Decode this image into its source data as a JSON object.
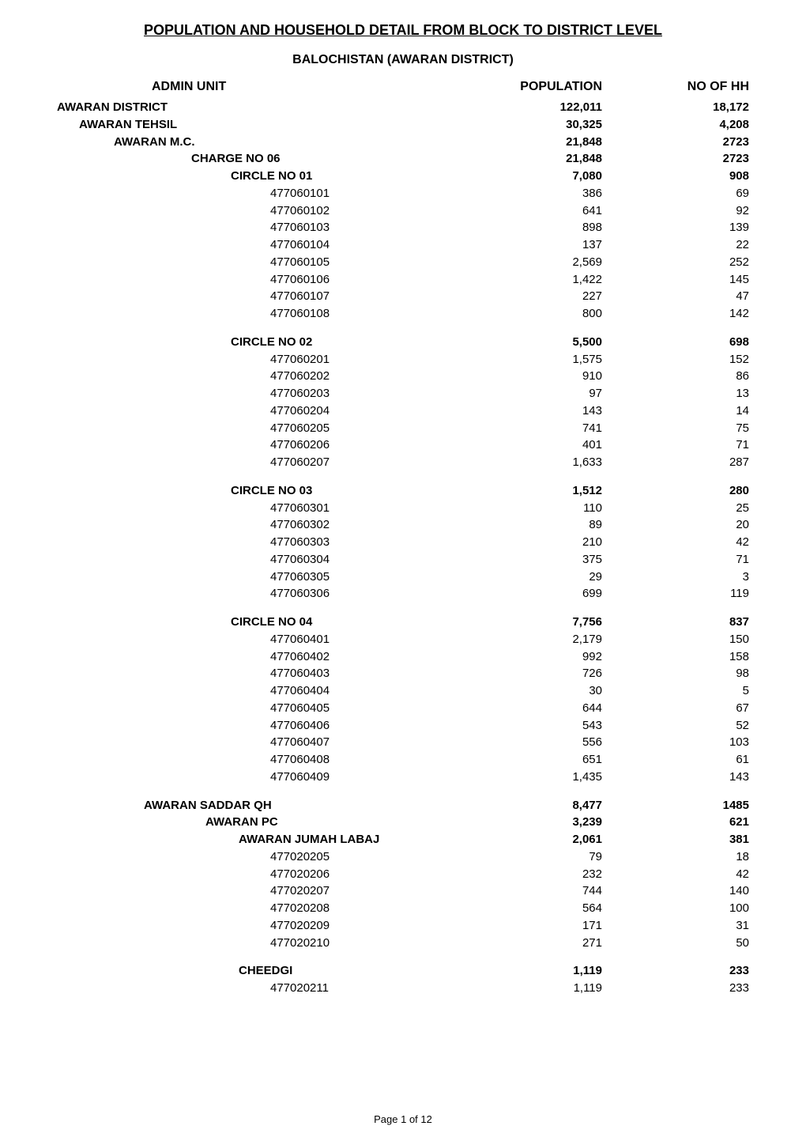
{
  "title": "POPULATION AND HOUSEHOLD DETAIL FROM BLOCK TO DISTRICT LEVEL",
  "subtitle": "BALOCHISTAN (AWARAN DISTRICT)",
  "columns": {
    "admin": "ADMIN UNIT",
    "pop": "POPULATION",
    "hh": "NO OF HH"
  },
  "footer": "Page 1 of 12",
  "rows": [
    {
      "level": "lvl-0",
      "bold": true,
      "label": "AWARAN DISTRICT",
      "pop": "122,011",
      "hh": "18,172"
    },
    {
      "level": "lvl-1",
      "bold": true,
      "label": "AWARAN TEHSIL",
      "pop": "30,325",
      "hh": "4,208"
    },
    {
      "level": "lvl-2",
      "bold": true,
      "label": "AWARAN M.C.",
      "pop": "21,848",
      "hh": "2723"
    },
    {
      "level": "lvl-3",
      "bold": true,
      "label": "CHARGE NO 06",
      "pop": "21,848",
      "hh": "2723"
    },
    {
      "level": "lvl-4",
      "bold": true,
      "label": "CIRCLE NO 01",
      "pop": "7,080",
      "hh": "908"
    },
    {
      "level": "lvl-5",
      "bold": false,
      "label": "477060101",
      "pop": "386",
      "hh": "69"
    },
    {
      "level": "lvl-5",
      "bold": false,
      "label": "477060102",
      "pop": "641",
      "hh": "92"
    },
    {
      "level": "lvl-5",
      "bold": false,
      "label": "477060103",
      "pop": "898",
      "hh": "139"
    },
    {
      "level": "lvl-5",
      "bold": false,
      "label": "477060104",
      "pop": "137",
      "hh": "22"
    },
    {
      "level": "lvl-5",
      "bold": false,
      "label": "477060105",
      "pop": "2,569",
      "hh": "252"
    },
    {
      "level": "lvl-5",
      "bold": false,
      "label": "477060106",
      "pop": "1,422",
      "hh": "145"
    },
    {
      "level": "lvl-5",
      "bold": false,
      "label": "477060107",
      "pop": "227",
      "hh": "47"
    },
    {
      "level": "lvl-5",
      "bold": false,
      "label": "477060108",
      "pop": "800",
      "hh": "142"
    },
    {
      "spacer": true
    },
    {
      "level": "lvl-4",
      "bold": true,
      "label": "CIRCLE NO 02",
      "pop": "5,500",
      "hh": "698"
    },
    {
      "level": "lvl-5",
      "bold": false,
      "label": "477060201",
      "pop": "1,575",
      "hh": "152"
    },
    {
      "level": "lvl-5",
      "bold": false,
      "label": "477060202",
      "pop": "910",
      "hh": "86"
    },
    {
      "level": "lvl-5",
      "bold": false,
      "label": "477060203",
      "pop": "97",
      "hh": "13"
    },
    {
      "level": "lvl-5",
      "bold": false,
      "label": "477060204",
      "pop": "143",
      "hh": "14"
    },
    {
      "level": "lvl-5",
      "bold": false,
      "label": "477060205",
      "pop": "741",
      "hh": "75"
    },
    {
      "level": "lvl-5",
      "bold": false,
      "label": "477060206",
      "pop": "401",
      "hh": "71"
    },
    {
      "level": "lvl-5",
      "bold": false,
      "label": "477060207",
      "pop": "1,633",
      "hh": "287"
    },
    {
      "spacer": true
    },
    {
      "level": "lvl-4",
      "bold": true,
      "label": "CIRCLE NO 03",
      "pop": "1,512",
      "hh": "280"
    },
    {
      "level": "lvl-5",
      "bold": false,
      "label": "477060301",
      "pop": "110",
      "hh": "25"
    },
    {
      "level": "lvl-5",
      "bold": false,
      "label": "477060302",
      "pop": "89",
      "hh": "20"
    },
    {
      "level": "lvl-5",
      "bold": false,
      "label": "477060303",
      "pop": "210",
      "hh": "42"
    },
    {
      "level": "lvl-5",
      "bold": false,
      "label": "477060304",
      "pop": "375",
      "hh": "71"
    },
    {
      "level": "lvl-5",
      "bold": false,
      "label": "477060305",
      "pop": "29",
      "hh": "3"
    },
    {
      "level": "lvl-5",
      "bold": false,
      "label": "477060306",
      "pop": "699",
      "hh": "119"
    },
    {
      "spacer": true
    },
    {
      "level": "lvl-4",
      "bold": true,
      "label": "CIRCLE NO 04",
      "pop": "7,756",
      "hh": "837"
    },
    {
      "level": "lvl-5",
      "bold": false,
      "label": "477060401",
      "pop": "2,179",
      "hh": "150"
    },
    {
      "level": "lvl-5",
      "bold": false,
      "label": "477060402",
      "pop": "992",
      "hh": "158"
    },
    {
      "level": "lvl-5",
      "bold": false,
      "label": "477060403",
      "pop": "726",
      "hh": "98"
    },
    {
      "level": "lvl-5",
      "bold": false,
      "label": "477060404",
      "pop": "30",
      "hh": "5"
    },
    {
      "level": "lvl-5",
      "bold": false,
      "label": "477060405",
      "pop": "644",
      "hh": "67"
    },
    {
      "level": "lvl-5",
      "bold": false,
      "label": "477060406",
      "pop": "543",
      "hh": "52"
    },
    {
      "level": "lvl-5",
      "bold": false,
      "label": "477060407",
      "pop": "556",
      "hh": "103"
    },
    {
      "level": "lvl-5",
      "bold": false,
      "label": "477060408",
      "pop": "651",
      "hh": "61"
    },
    {
      "level": "lvl-5",
      "bold": false,
      "label": "477060409",
      "pop": "1,435",
      "hh": "143"
    },
    {
      "spacer": true
    },
    {
      "level": "lvl-qh",
      "bold": true,
      "label": "AWARAN SADDAR QH",
      "pop": "8,477",
      "hh": "1485"
    },
    {
      "level": "lvl-pc",
      "bold": true,
      "label": "AWARAN PC",
      "pop": "3,239",
      "hh": "621"
    },
    {
      "level": "lvl-sub",
      "bold": true,
      "label": "AWARAN JUMAH LABAJ",
      "pop": "2,061",
      "hh": "381"
    },
    {
      "level": "lvl-code",
      "bold": false,
      "label": "477020205",
      "pop": "79",
      "hh": "18"
    },
    {
      "level": "lvl-code",
      "bold": false,
      "label": "477020206",
      "pop": "232",
      "hh": "42"
    },
    {
      "level": "lvl-code",
      "bold": false,
      "label": "477020207",
      "pop": "744",
      "hh": "140"
    },
    {
      "level": "lvl-code",
      "bold": false,
      "label": "477020208",
      "pop": "564",
      "hh": "100"
    },
    {
      "level": "lvl-code",
      "bold": false,
      "label": "477020209",
      "pop": "171",
      "hh": "31"
    },
    {
      "level": "lvl-code",
      "bold": false,
      "label": "477020210",
      "pop": "271",
      "hh": "50"
    },
    {
      "spacer": true
    },
    {
      "level": "lvl-sub",
      "bold": true,
      "label": "CHEEDGI",
      "pop": "1,119",
      "hh": "233"
    },
    {
      "level": "lvl-code",
      "bold": false,
      "label": "477020211",
      "pop": "1,119",
      "hh": "233"
    }
  ]
}
